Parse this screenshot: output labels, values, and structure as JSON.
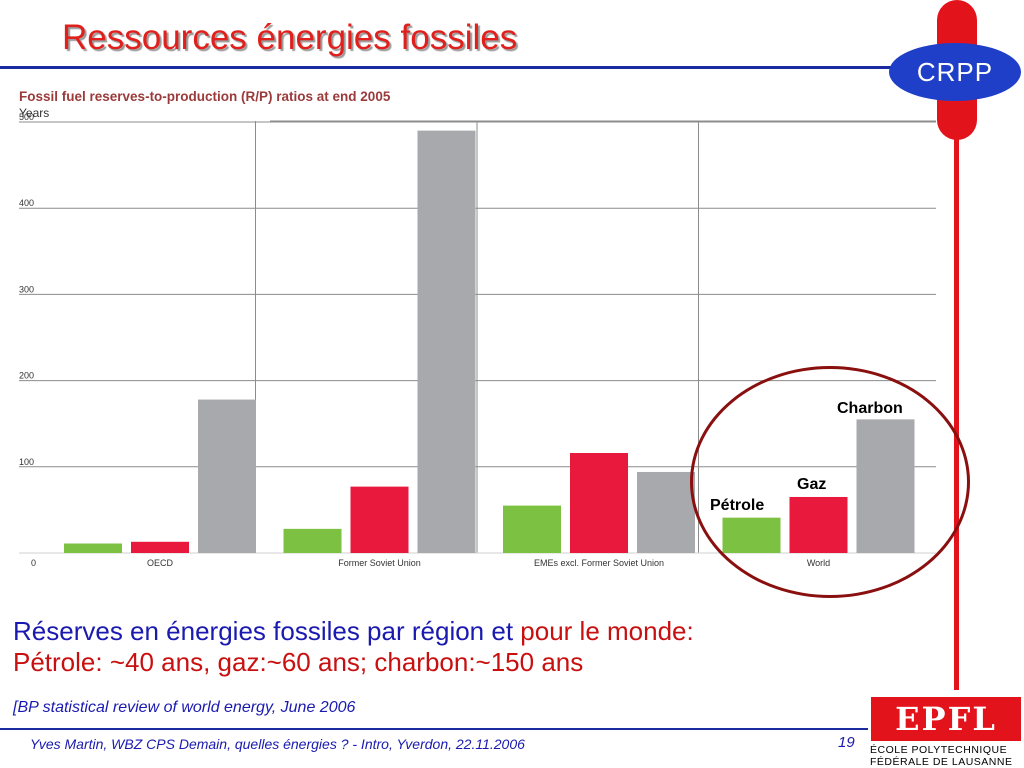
{
  "slide": {
    "title": "Ressources énergies fossiles",
    "logo": "CRPP",
    "summary_line1_a": "Réserves en énergies fossiles par région et",
    "summary_line1_b": "pour le monde:",
    "summary_line2": "Pétrole: ~40 ans, gaz:~60 ans; charbon:~150 ans",
    "source": "[BP statistical review  of world energy, June 2006",
    "footer": "Yves Martin, WBZ CPS Demain, quelles énergies ? - Intro, Yverdon, 22.11.2006",
    "page_number": "19",
    "epfl_logo": "EPFL",
    "epfl_text_line1": "ÉCOLE POLYTECHNIQUE",
    "epfl_text_line2": "FÉDÉRALE DE LAUSANNE"
  },
  "annotations": {
    "charbon": "Charbon",
    "gaz": "Gaz",
    "petrole": "Pétrole"
  },
  "colors": {
    "title": "#e0201c",
    "blue": "#1a2aa0",
    "oil": "#7dc142",
    "gas": "#e8193c",
    "coal": "#a7a9ac",
    "ring": "#8a1010"
  },
  "chart_data": {
    "type": "bar",
    "title": "Fossil fuel reserves-to-production (R/P) ratios at end 2005",
    "ylabel": "Years",
    "ylim": [
      0,
      500
    ],
    "yticks": [
      0,
      100,
      200,
      300,
      400,
      500
    ],
    "grid": true,
    "categories": [
      "OECD",
      "Former Soviet Union",
      "EMEs excl. Former Soviet Union",
      "World"
    ],
    "series": [
      {
        "values": [
          11,
          28,
          55,
          41
        ]
      },
      {
        "values": [
          13,
          77,
          116,
          65
        ]
      },
      {
        "values": [
          178,
          490,
          94,
          155
        ]
      }
    ]
  }
}
